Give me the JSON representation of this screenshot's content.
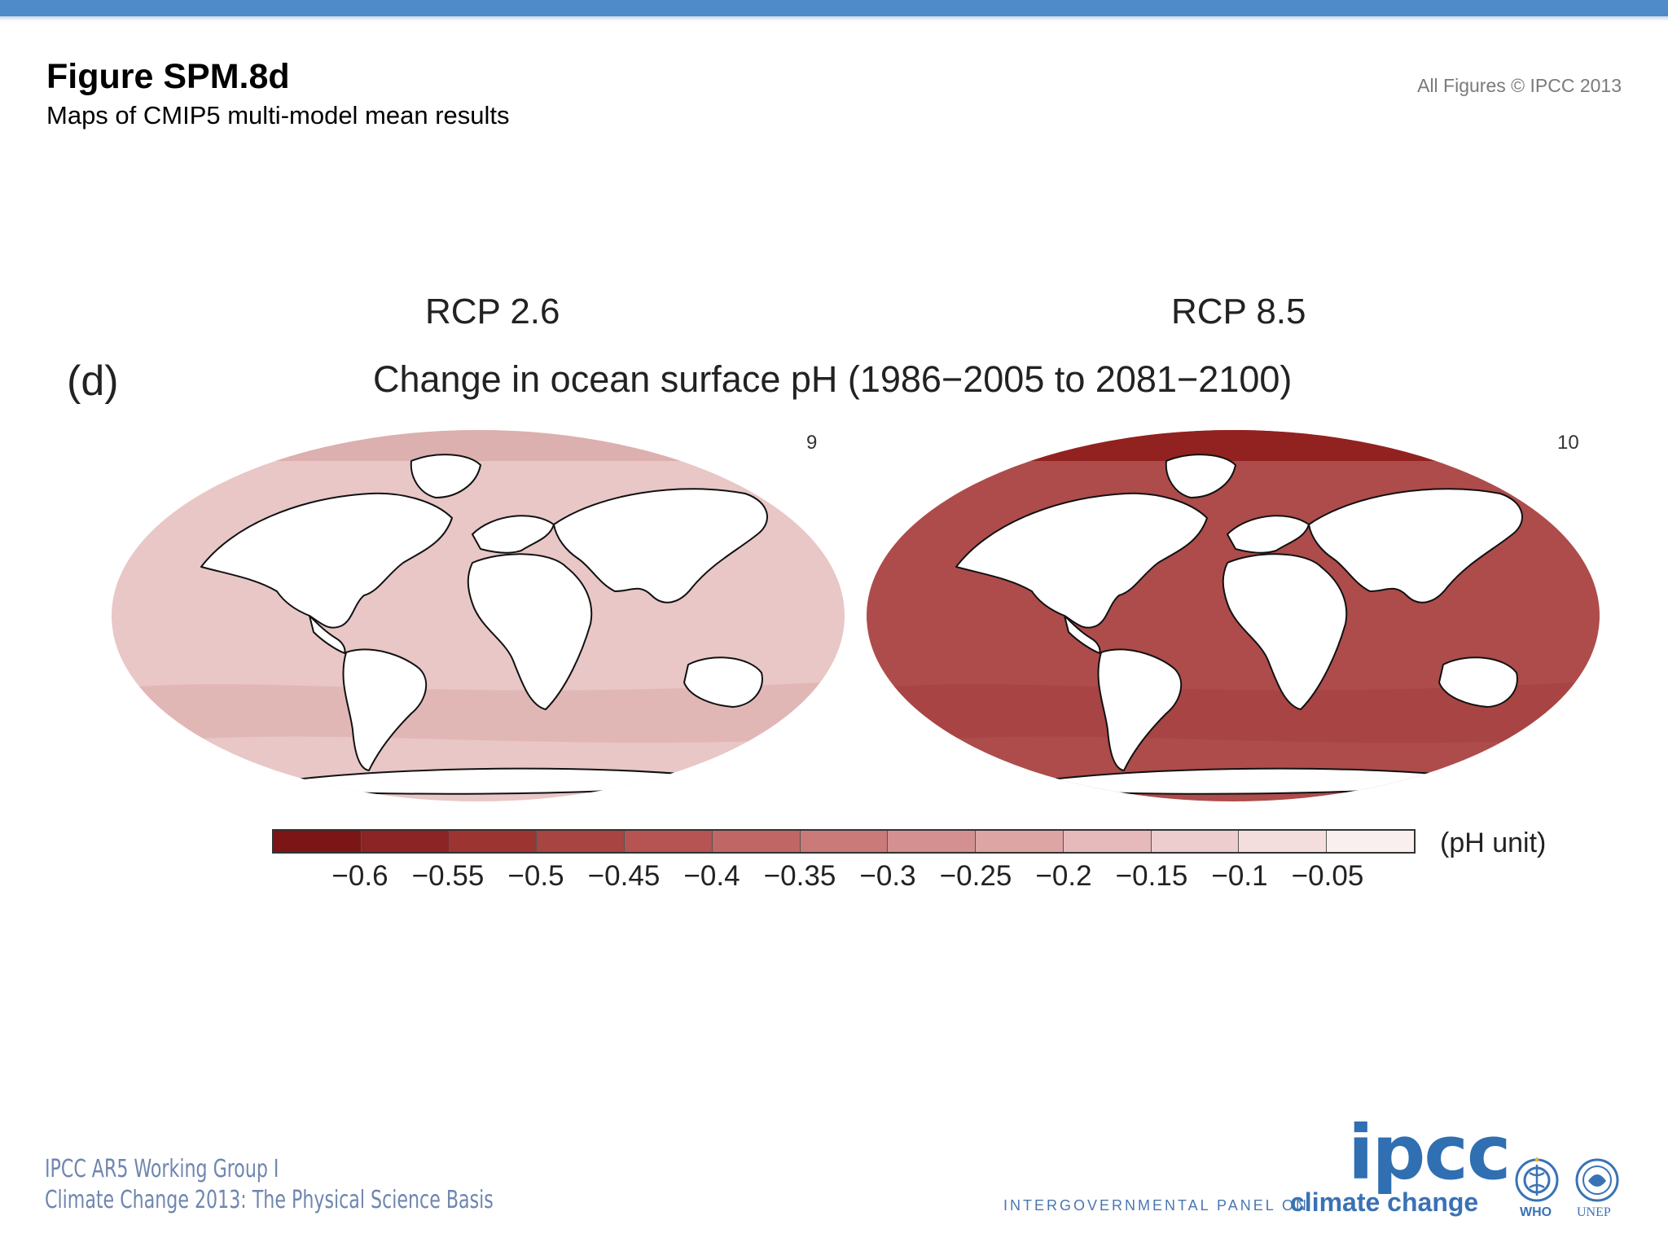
{
  "header": {
    "title": "Figure SPM.8d",
    "subtitle": "Maps of CMIP5 multi-model mean results",
    "copyright": "All Figures © IPCC 2013"
  },
  "figure": {
    "panel_label": "(d)",
    "map_title": "Change in ocean surface pH (1986−2005 to 2081−2100)",
    "maps": [
      {
        "scenario": "RCP 2.6",
        "model_count": "9",
        "ocean_color": "#e8c7c6",
        "ocean_band_color": "#dfb3b2",
        "arctic_color": "#dcb0af"
      },
      {
        "scenario": "RCP 8.5",
        "model_count": "10",
        "ocean_color": "#ad4c4b",
        "ocean_band_color": "#a64241",
        "arctic_color": "#922220"
      }
    ]
  },
  "colorbar": {
    "unit": "(pH unit)",
    "colors": [
      "#7b1516",
      "#8c2324",
      "#9c3432",
      "#a84442",
      "#b55452",
      "#c06766",
      "#c97a79",
      "#d49090",
      "#dda5a4",
      "#e6baba",
      "#edcdcd",
      "#f3dedd",
      "#f9efee"
    ],
    "tick_labels": [
      "−0.6",
      "−0.55",
      "−0.5",
      "−0.45",
      "−0.4",
      "−0.35",
      "−0.3",
      "−0.25",
      "−0.2",
      "−0.15",
      "−0.1",
      "−0.05"
    ]
  },
  "footer": {
    "line1": "IPCC AR5 Working Group I",
    "line2": "Climate Change 2013:  The Physical Science Basis",
    "logo_text": "ipcc",
    "logo_panel": "INTERGOVERNMENTAL PANEL ON",
    "logo_climate": "climate change",
    "partner1": "WHO",
    "partner2": "UNEP"
  }
}
